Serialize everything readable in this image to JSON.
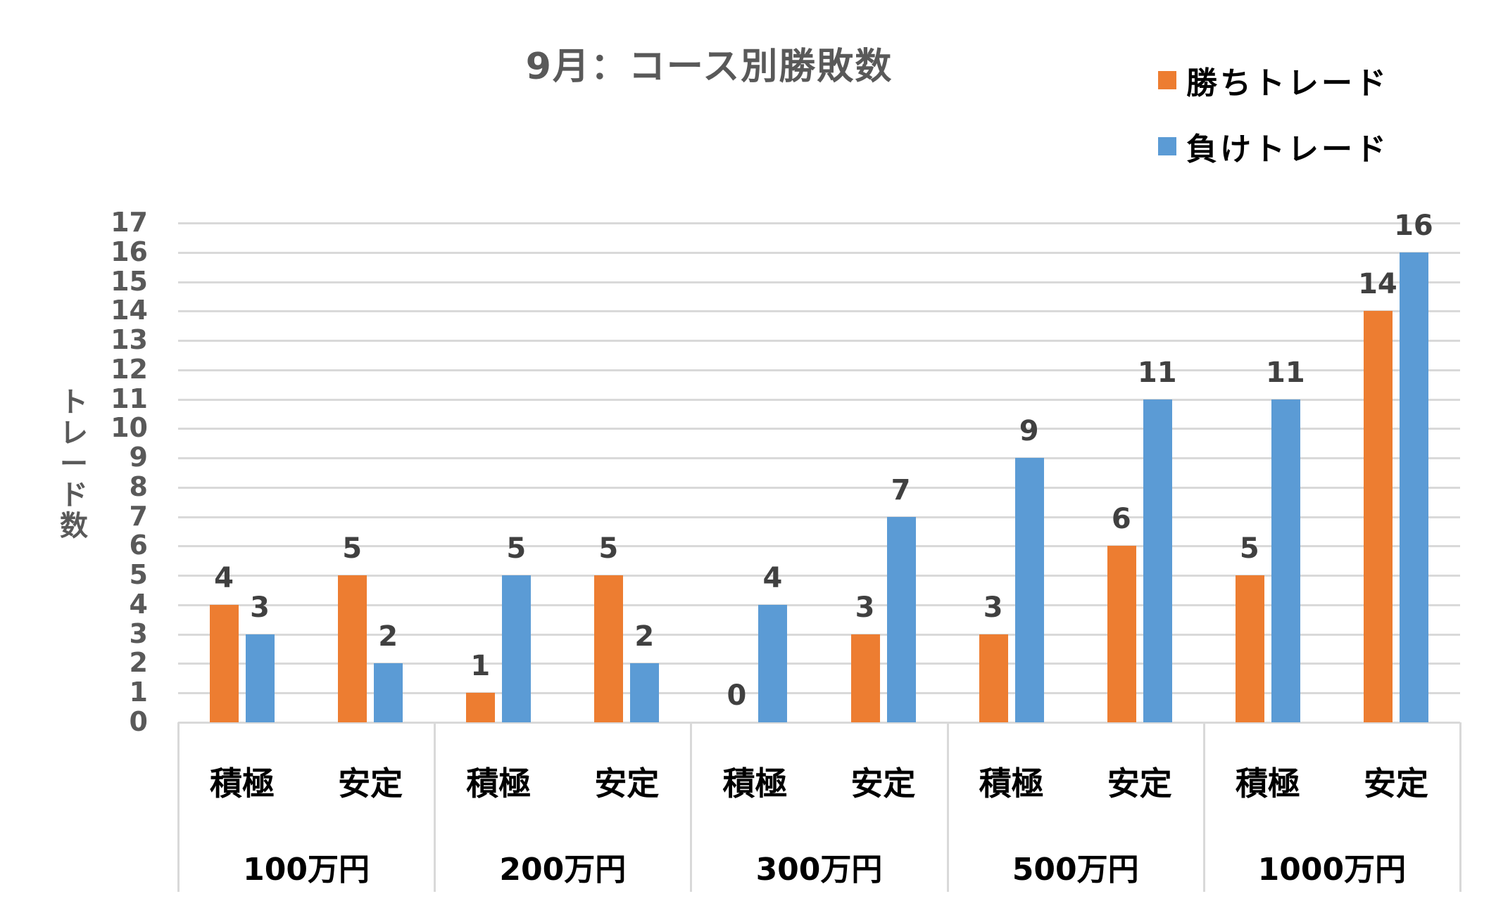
{
  "chart_data": {
    "type": "bar",
    "title": "9月：コース別勝敗数",
    "xlabel": "",
    "ylabel": "トレード数",
    "ylim": [
      0,
      17
    ],
    "yticks": [
      0,
      1,
      2,
      3,
      4,
      5,
      6,
      7,
      8,
      9,
      10,
      11,
      12,
      13,
      14,
      15,
      16,
      17
    ],
    "grid": true,
    "legend_position": "top-right",
    "groups": [
      "100万円",
      "200万円",
      "300万円",
      "500万円",
      "1000万円"
    ],
    "categories": [
      "積極",
      "安定",
      "積極",
      "安定",
      "積極",
      "安定",
      "積極",
      "安定",
      "積極",
      "安定"
    ],
    "series": [
      {
        "name": "勝ちトレード",
        "color": "#ED7D31",
        "values": [
          4,
          5,
          1,
          5,
          0,
          3,
          3,
          6,
          5,
          14
        ]
      },
      {
        "name": "負けトレード",
        "color": "#5B9BD5",
        "values": [
          3,
          2,
          5,
          2,
          4,
          7,
          9,
          11,
          11,
          16
        ]
      }
    ]
  },
  "legend": {
    "items": [
      {
        "label": "勝ちトレード",
        "color": "#ED7D31"
      },
      {
        "label": "負けトレード",
        "color": "#5B9BD5"
      }
    ]
  },
  "colors": {
    "title": "#595959",
    "grid": "#D9D9D9",
    "data_label": "#404040"
  }
}
